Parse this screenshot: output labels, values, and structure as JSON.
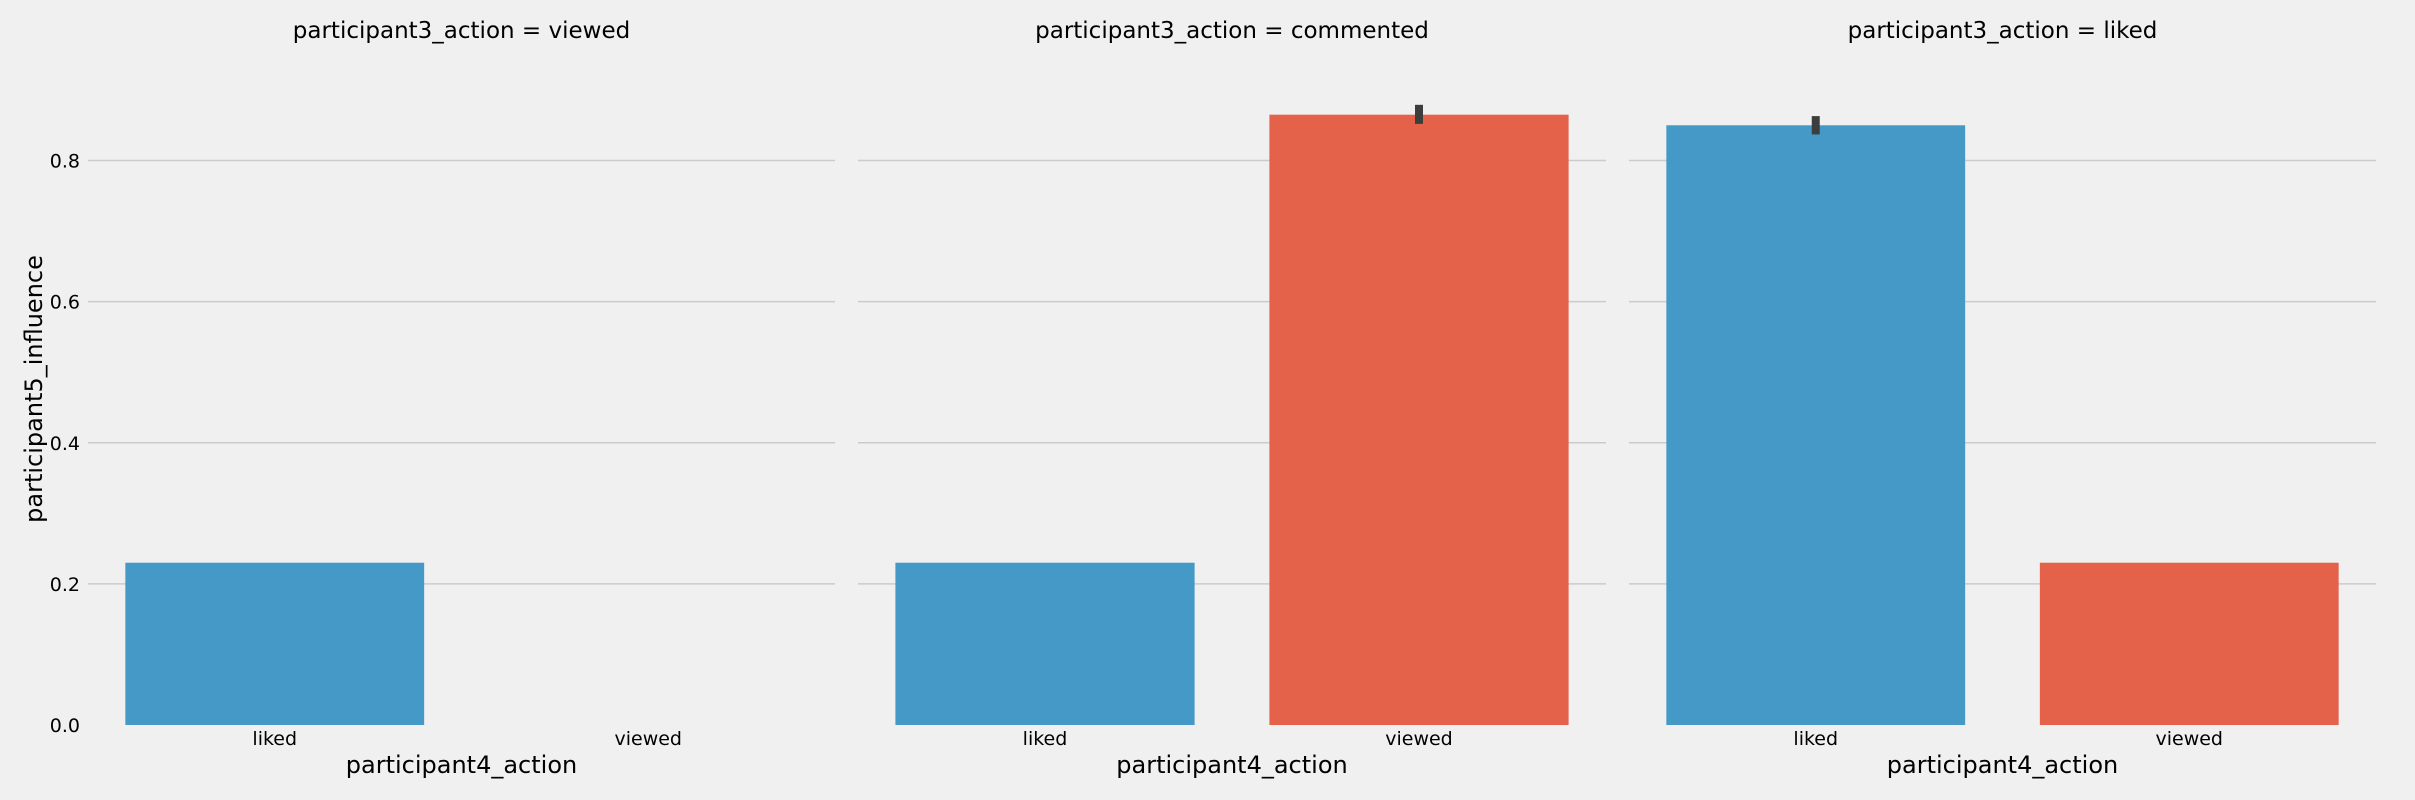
{
  "chart_data": {
    "type": "bar",
    "facet_variable": "participant3_action",
    "xlabel": "participant4_action",
    "ylabel": "participant5_influence",
    "ylim": [
      0,
      0.9
    ],
    "yticks": [
      "0.0",
      "0.2",
      "0.4",
      "0.6",
      "0.8"
    ],
    "categories": [
      "liked",
      "viewed"
    ],
    "grid": "horizontal",
    "colors": {
      "liked": "#4599c6",
      "viewed": "#e4614a",
      "errorbar": "#3d3d3d",
      "background": "#f0f0f0"
    },
    "panels": [
      {
        "title": "participant3_action = viewed",
        "bars": [
          {
            "category": "liked",
            "value": 0.23,
            "err_low": null,
            "err_high": null
          },
          {
            "category": "viewed",
            "value": null,
            "err_low": null,
            "err_high": null
          }
        ]
      },
      {
        "title": "participant3_action = commented",
        "bars": [
          {
            "category": "liked",
            "value": 0.23,
            "err_low": null,
            "err_high": null
          },
          {
            "category": "viewed",
            "value": 0.865,
            "err_low": 0.852,
            "err_high": 0.879
          }
        ]
      },
      {
        "title": "participant3_action = liked",
        "bars": [
          {
            "category": "liked",
            "value": 0.85,
            "err_low": 0.837,
            "err_high": 0.863
          },
          {
            "category": "viewed",
            "value": 0.23,
            "err_low": null,
            "err_high": null
          }
        ]
      }
    ]
  }
}
